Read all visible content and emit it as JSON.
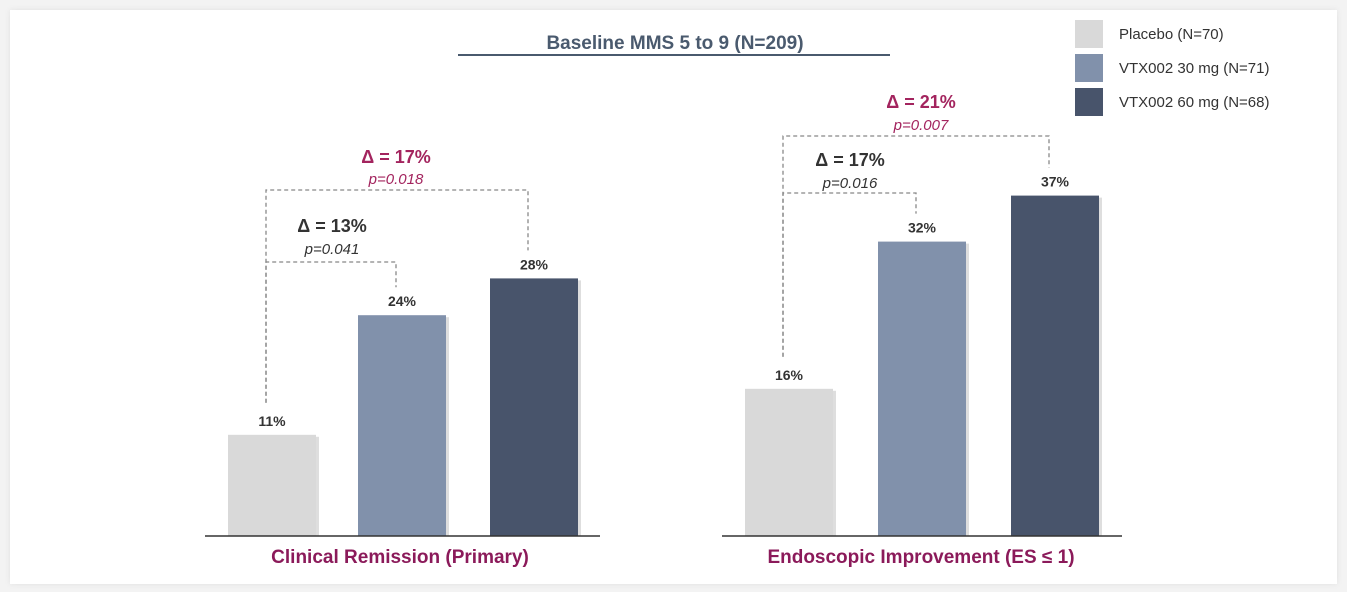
{
  "colors": {
    "placebo": "#d9d9d9",
    "vtx30": "#8191ab",
    "vtx60": "#48546b",
    "title": "#4a5a6e",
    "accent": "#a3245e",
    "panel_title": "#8b1a5a",
    "bracket": "#888888"
  },
  "chart_data": {
    "type": "bar",
    "title": "Baseline MMS 5 to 9 (N=209)",
    "legend": [
      {
        "name": "Placebo (N=70)",
        "color": "#d9d9d9"
      },
      {
        "name": "VTX002 30 mg (N=71)",
        "color": "#8191ab"
      },
      {
        "name": "VTX002 60 mg (N=68)",
        "color": "#48546b"
      }
    ],
    "legend_position": "top-right",
    "ylim": [
      0,
      40
    ],
    "panels": [
      {
        "title": "Clinical Remission (Primary)",
        "values": [
          11,
          24,
          28
        ],
        "value_labels": [
          "11%",
          "24%",
          "28%"
        ],
        "comparisons": [
          {
            "from": 0,
            "to": 1,
            "delta": "Δ = 13%",
            "p": "p=0.041",
            "style": "dark"
          },
          {
            "from": 0,
            "to": 2,
            "delta": "Δ = 17%",
            "p": "p=0.018",
            "style": "accent"
          }
        ]
      },
      {
        "title": "Endoscopic Improvement (ES ≤ 1)",
        "values": [
          16,
          32,
          37
        ],
        "value_labels": [
          "16%",
          "32%",
          "37%"
        ],
        "comparisons": [
          {
            "from": 0,
            "to": 1,
            "delta": "Δ = 17%",
            "p": "p=0.016",
            "style": "dark"
          },
          {
            "from": 0,
            "to": 2,
            "delta": "Δ = 21%",
            "p": "p=0.007",
            "style": "accent"
          }
        ]
      }
    ]
  }
}
